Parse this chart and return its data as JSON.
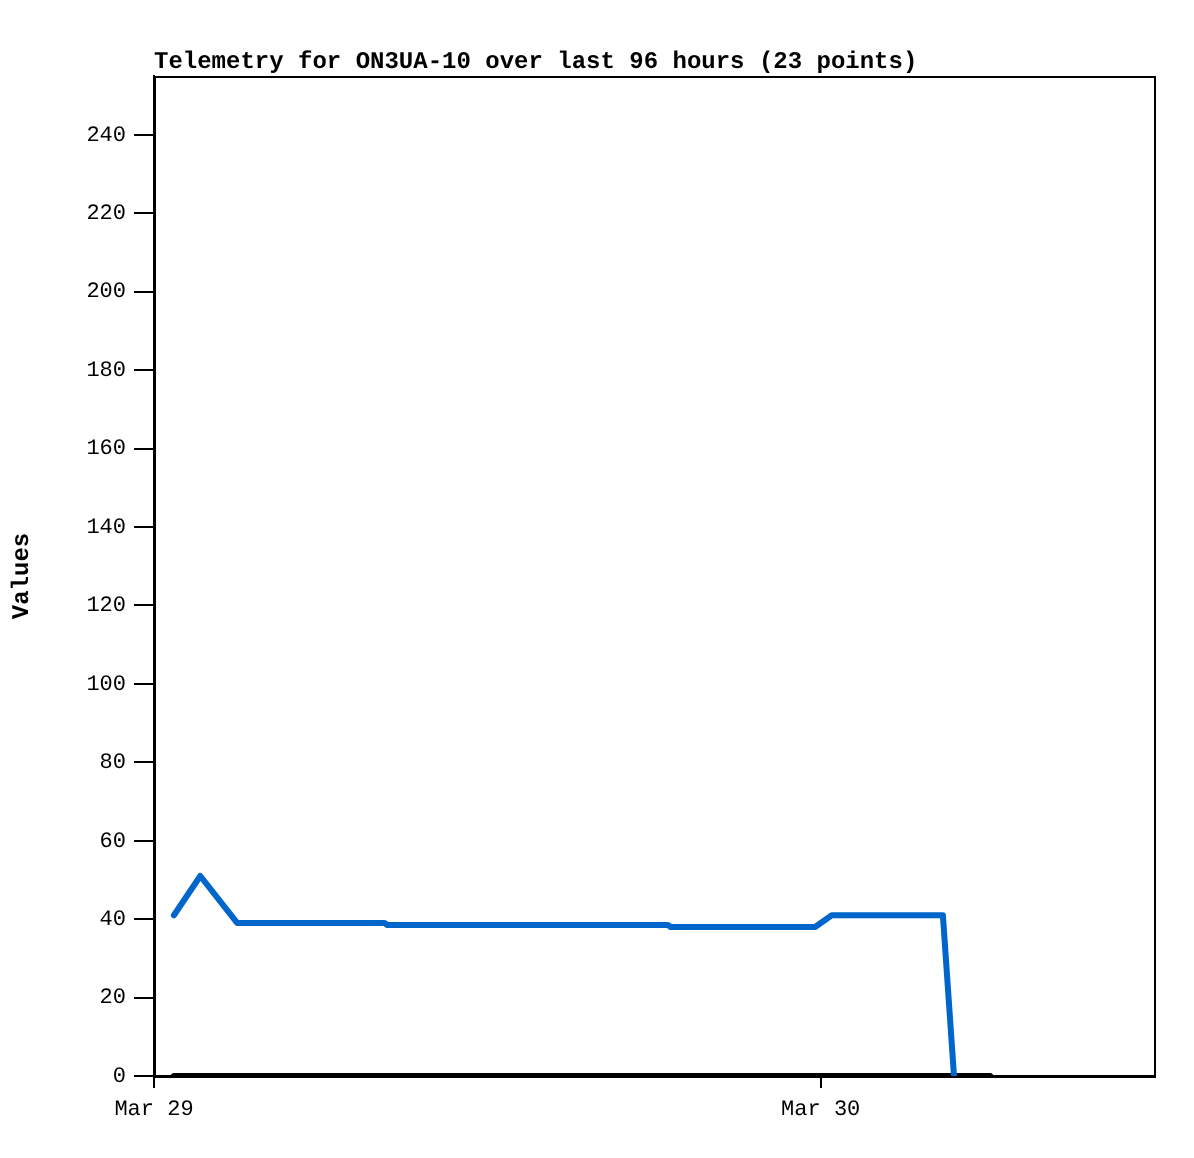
{
  "chart_data": {
    "type": "line",
    "title": "Telemetry for ON3UA-10 over last 96 hours (23 points)",
    "ylabel": "Values",
    "xlim": [
      "--03-29T00:00",
      "--03-30T12:00"
    ],
    "xticks": [
      {
        "value": "--03-29T00:00",
        "label": "Mar 29"
      },
      {
        "value": "--03-30T00:00",
        "label": "Mar 30"
      }
    ],
    "ylim": [
      0,
      255
    ],
    "yticks": [
      0,
      20,
      40,
      60,
      80,
      100,
      120,
      140,
      160,
      180,
      200,
      220,
      240
    ],
    "grid": false,
    "legend": false,
    "marker": "none",
    "line_style": "solid",
    "series": [
      {
        "color": "#0066cc",
        "x": [
          "--03-29T00:43",
          "--03-29T01:40",
          "--03-29T03:00",
          "--03-29T08:18",
          "--03-29T08:24",
          "--03-29T18:30",
          "--03-29T18:36",
          "--03-29T23:48",
          "--03-30T00:24",
          "--03-30T04:24",
          "--03-30T04:48"
        ],
        "values": [
          41,
          51,
          39,
          39,
          38.5,
          38.5,
          38,
          38,
          41,
          41,
          0
        ]
      },
      {
        "color": "#000000",
        "x": [
          "--03-29T00:43",
          "--03-30T06:06"
        ],
        "values": [
          0,
          0
        ]
      }
    ]
  }
}
